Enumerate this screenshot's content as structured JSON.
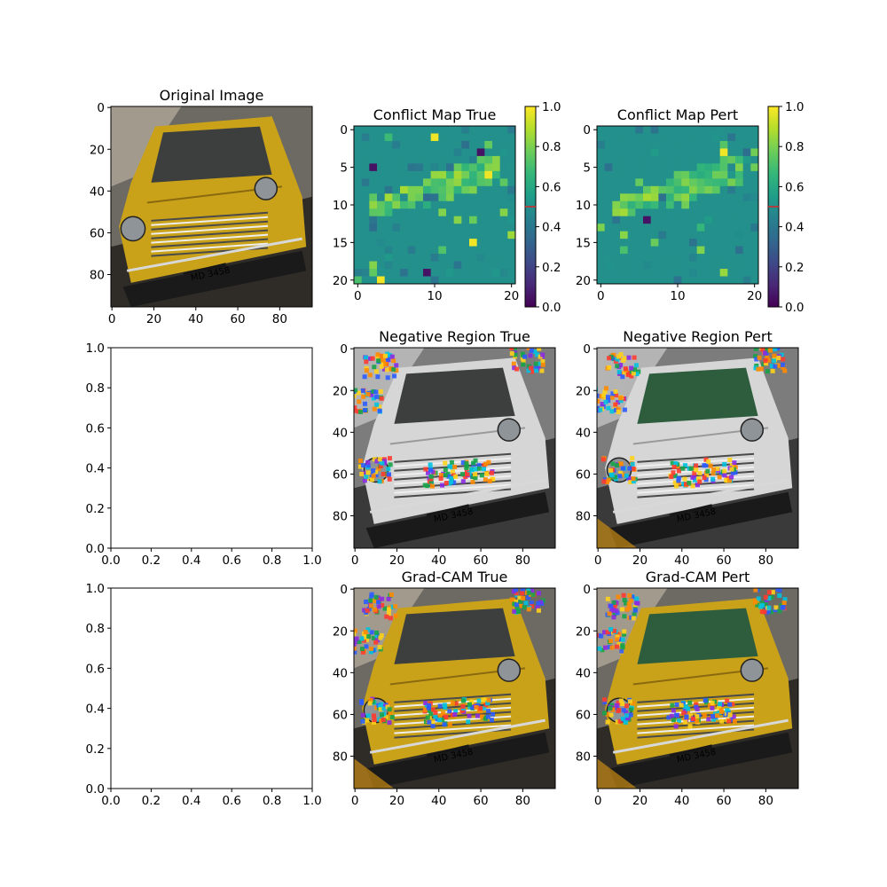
{
  "figure": {
    "panels": [
      {
        "id": "p1",
        "title": "Original Image",
        "kind": "image",
        "variant": "orig",
        "xticks": [
          "0",
          "20",
          "40",
          "60",
          "80"
        ],
        "yticks": [
          "0",
          "20",
          "40",
          "60",
          "80"
        ]
      },
      {
        "id": "p2",
        "title": "Conflict Map True",
        "kind": "conflict",
        "seed": 7,
        "xticks": [
          "0",
          "10",
          "20"
        ],
        "yticks": [
          "0",
          "5",
          "10",
          "15",
          "20"
        ],
        "colorbar": {
          "ticks": [
            "0.0",
            "0.2",
            "0.4",
            "0.6",
            "0.8",
            "1.0"
          ],
          "marker_value": 0.5
        }
      },
      {
        "id": "p3",
        "title": "Conflict Map Pert",
        "kind": "conflict",
        "seed": 19,
        "xticks": [
          "0",
          "10",
          "20"
        ],
        "yticks": [
          "0",
          "5",
          "10",
          "15",
          "20"
        ],
        "colorbar": {
          "ticks": [
            "0.0",
            "0.2",
            "0.4",
            "0.6",
            "0.8",
            "1.0"
          ],
          "marker_value": 0.5
        }
      },
      {
        "id": "p4",
        "title": "",
        "kind": "empty",
        "xticks": [
          "0.0",
          "0.2",
          "0.4",
          "0.6",
          "0.8",
          "1.0"
        ],
        "yticks": [
          "0.0",
          "0.2",
          "0.4",
          "0.6",
          "0.8",
          "1.0"
        ]
      },
      {
        "id": "p5",
        "title": "Negative Region True",
        "kind": "image",
        "variant": "gray",
        "xticks": [
          "0",
          "20",
          "40",
          "60",
          "80"
        ],
        "yticks": [
          "0",
          "20",
          "40",
          "60",
          "80"
        ]
      },
      {
        "id": "p6",
        "title": "Negative Region Pert",
        "kind": "image",
        "variant": "gray2",
        "xticks": [
          "0",
          "20",
          "40",
          "60",
          "80"
        ],
        "yticks": [
          "0",
          "20",
          "40",
          "60",
          "80"
        ]
      },
      {
        "id": "p7",
        "title": "",
        "kind": "empty",
        "xticks": [
          "0.0",
          "0.2",
          "0.4",
          "0.6",
          "0.8",
          "1.0"
        ],
        "yticks": [
          "0.0",
          "0.2",
          "0.4",
          "0.6",
          "0.8",
          "1.0"
        ]
      },
      {
        "id": "p8",
        "title": "Grad-CAM True",
        "kind": "image",
        "variant": "cam",
        "xticks": [
          "0",
          "20",
          "40",
          "60",
          "80"
        ],
        "yticks": [
          "0",
          "20",
          "40",
          "60",
          "80"
        ]
      },
      {
        "id": "p9",
        "title": "Grad-CAM Pert",
        "kind": "image",
        "variant": "cam2",
        "xticks": [
          "0",
          "20",
          "40",
          "60",
          "80"
        ],
        "yticks": [
          "0",
          "20",
          "40",
          "60",
          "80"
        ]
      }
    ]
  },
  "chart_data": [
    {
      "type": "heatmap",
      "title": "Original Image",
      "image": "photo of a yellow classic car, plate MD 3458",
      "image_size": [
        96,
        96
      ],
      "xlim": [
        0,
        96
      ],
      "ylim": [
        96,
        0
      ]
    },
    {
      "type": "heatmap",
      "title": "Conflict Map True",
      "grid_size": [
        21,
        21
      ],
      "xlim": [
        0,
        20
      ],
      "ylim": [
        20,
        0
      ],
      "colorbar_range": [
        0.0,
        1.0
      ],
      "colormap": "viridis",
      "background_value": 0.5,
      "description_values": "mostly 0.5 with a diagonal band of 0.6-0.9 from row 11 (col 2) to row 6 (col 17)"
    },
    {
      "type": "heatmap",
      "title": "Conflict Map Pert",
      "grid_size": [
        21,
        21
      ],
      "xlim": [
        0,
        20
      ],
      "ylim": [
        20,
        0
      ],
      "colorbar_range": [
        0.0,
        1.0
      ],
      "colormap": "viridis",
      "background_value": 0.5
    },
    {
      "type": "scatter",
      "title": "",
      "xlim": [
        0.0,
        1.0
      ],
      "ylim": [
        0.0,
        1.0
      ],
      "series": []
    },
    {
      "type": "heatmap",
      "title": "Negative Region True",
      "image_size": [
        96,
        96
      ],
      "xlim": [
        0,
        96
      ],
      "ylim": [
        96,
        0
      ]
    },
    {
      "type": "heatmap",
      "title": "Negative Region Pert",
      "image_size": [
        96,
        96
      ],
      "xlim": [
        0,
        96
      ],
      "ylim": [
        96,
        0
      ]
    },
    {
      "type": "scatter",
      "title": "",
      "xlim": [
        0.0,
        1.0
      ],
      "ylim": [
        0.0,
        1.0
      ],
      "series": []
    },
    {
      "type": "heatmap",
      "title": "Grad-CAM True",
      "image_size": [
        96,
        96
      ],
      "xlim": [
        0,
        96
      ],
      "ylim": [
        96,
        0
      ]
    },
    {
      "type": "heatmap",
      "title": "Grad-CAM Pert",
      "image_size": [
        96,
        96
      ],
      "xlim": [
        0,
        96
      ],
      "ylim": [
        96,
        0
      ]
    }
  ],
  "colors": {
    "car_yellow": "#c9a21a",
    "background_teal": "#2a8a8c",
    "marker_red": "#d62728"
  }
}
